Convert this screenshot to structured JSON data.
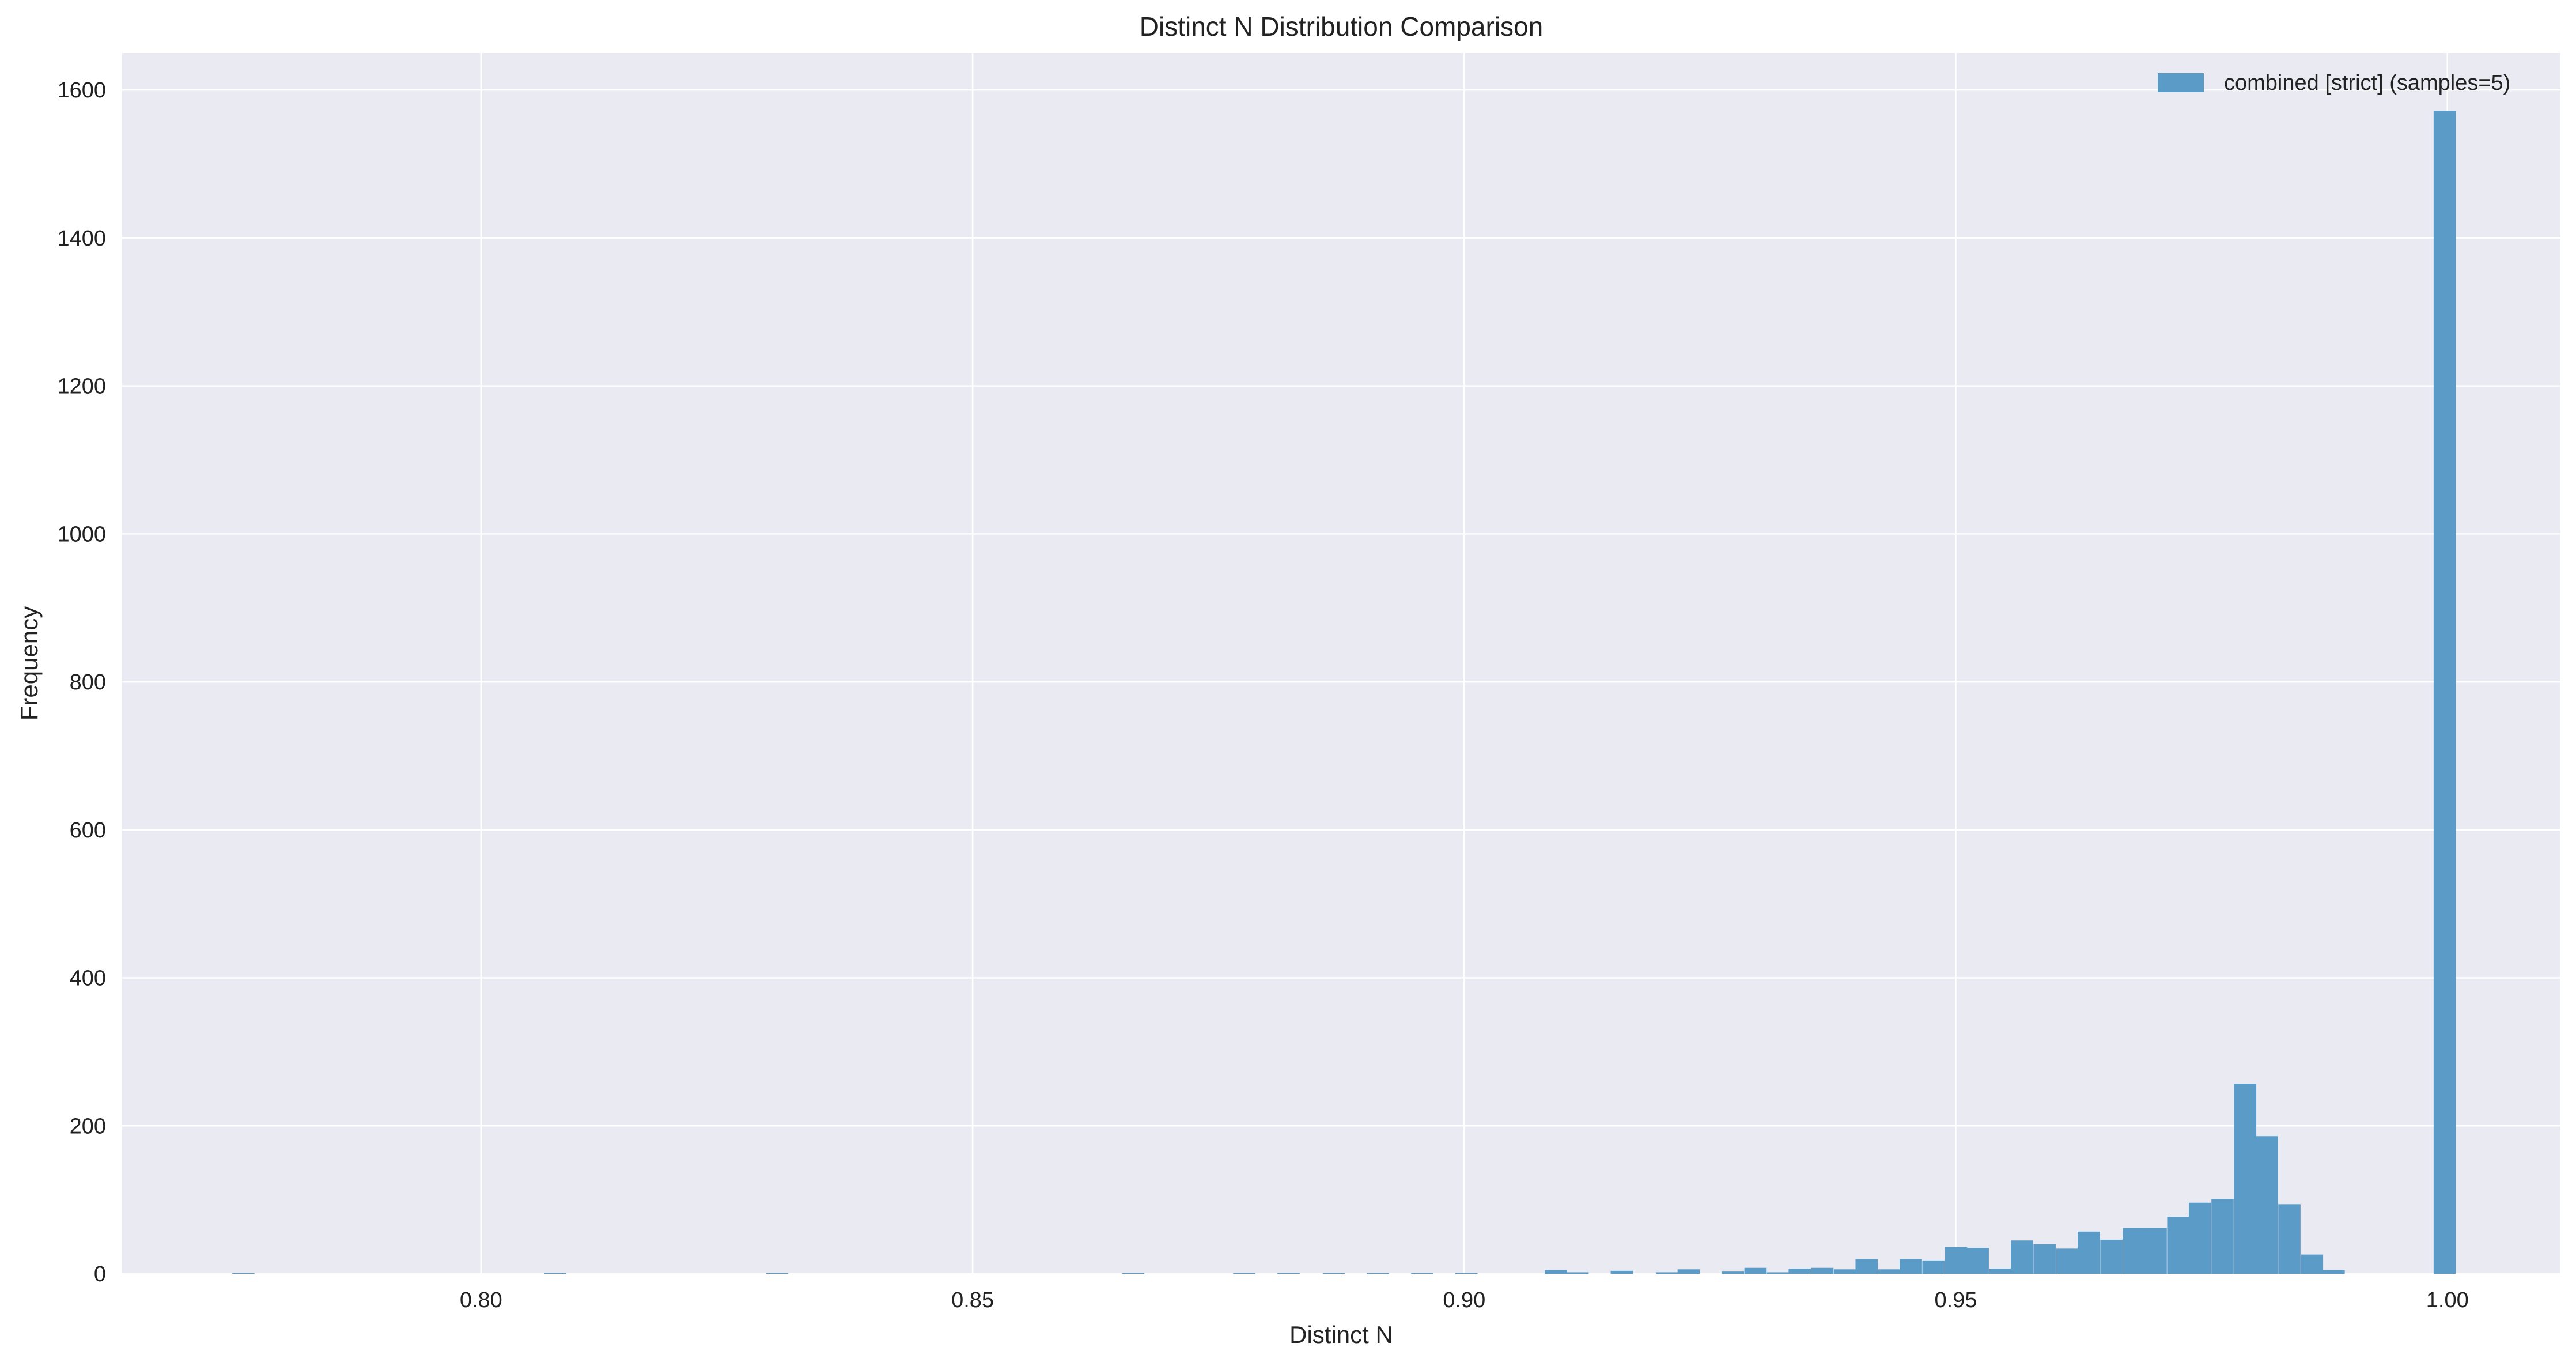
{
  "chart_data": {
    "type": "bar",
    "title": "Distinct N Distribution Comparison",
    "xlabel": "Distinct N",
    "ylabel": "Frequency",
    "xlim": [
      0.7635,
      1.0115
    ],
    "ylim": [
      0,
      1650
    ],
    "xticks": [
      0.8,
      0.85,
      0.9,
      0.95,
      1.0
    ],
    "xtick_labels": [
      "0.80",
      "0.85",
      "0.90",
      "0.95",
      "1.00"
    ],
    "yticks": [
      0,
      200,
      400,
      600,
      800,
      1000,
      1200,
      1400,
      1600
    ],
    "ytick_labels": [
      "0",
      "200",
      "400",
      "600",
      "800",
      "1000",
      "1200",
      "1400",
      "1600"
    ],
    "grid": true,
    "legend_position": "top-right",
    "bin_width": 0.002262,
    "series": [
      {
        "name": "combined [strict] (samples=5)",
        "color": "#5b9bc8",
        "bin_starts": [
          0.7747,
          0.8064,
          0.829,
          0.8652,
          0.8765,
          0.881,
          0.8856,
          0.8901,
          0.8946,
          0.8991,
          0.9082,
          0.9104,
          0.9149,
          0.9195,
          0.9217,
          0.9262,
          0.9285,
          0.9308,
          0.933,
          0.9353,
          0.9376,
          0.9398,
          0.9421,
          0.9443,
          0.9466,
          0.9489,
          0.9511,
          0.9534,
          0.9556,
          0.9579,
          0.9602,
          0.9624,
          0.9647,
          0.967,
          0.9692,
          0.9715,
          0.9737,
          0.976,
          0.9783,
          0.9805,
          0.9828,
          0.9851,
          0.9873,
          0.9986
        ],
        "values": [
          1,
          1,
          1,
          1,
          1,
          1,
          1,
          1,
          1,
          1,
          5,
          2,
          4,
          2,
          6,
          3,
          8,
          2,
          7,
          8,
          6,
          20,
          6,
          20,
          18,
          36,
          35,
          7,
          45,
          40,
          34,
          57,
          46,
          62,
          62,
          77,
          96,
          101,
          257,
          186,
          94,
          26,
          5,
          1572
        ]
      }
    ]
  }
}
